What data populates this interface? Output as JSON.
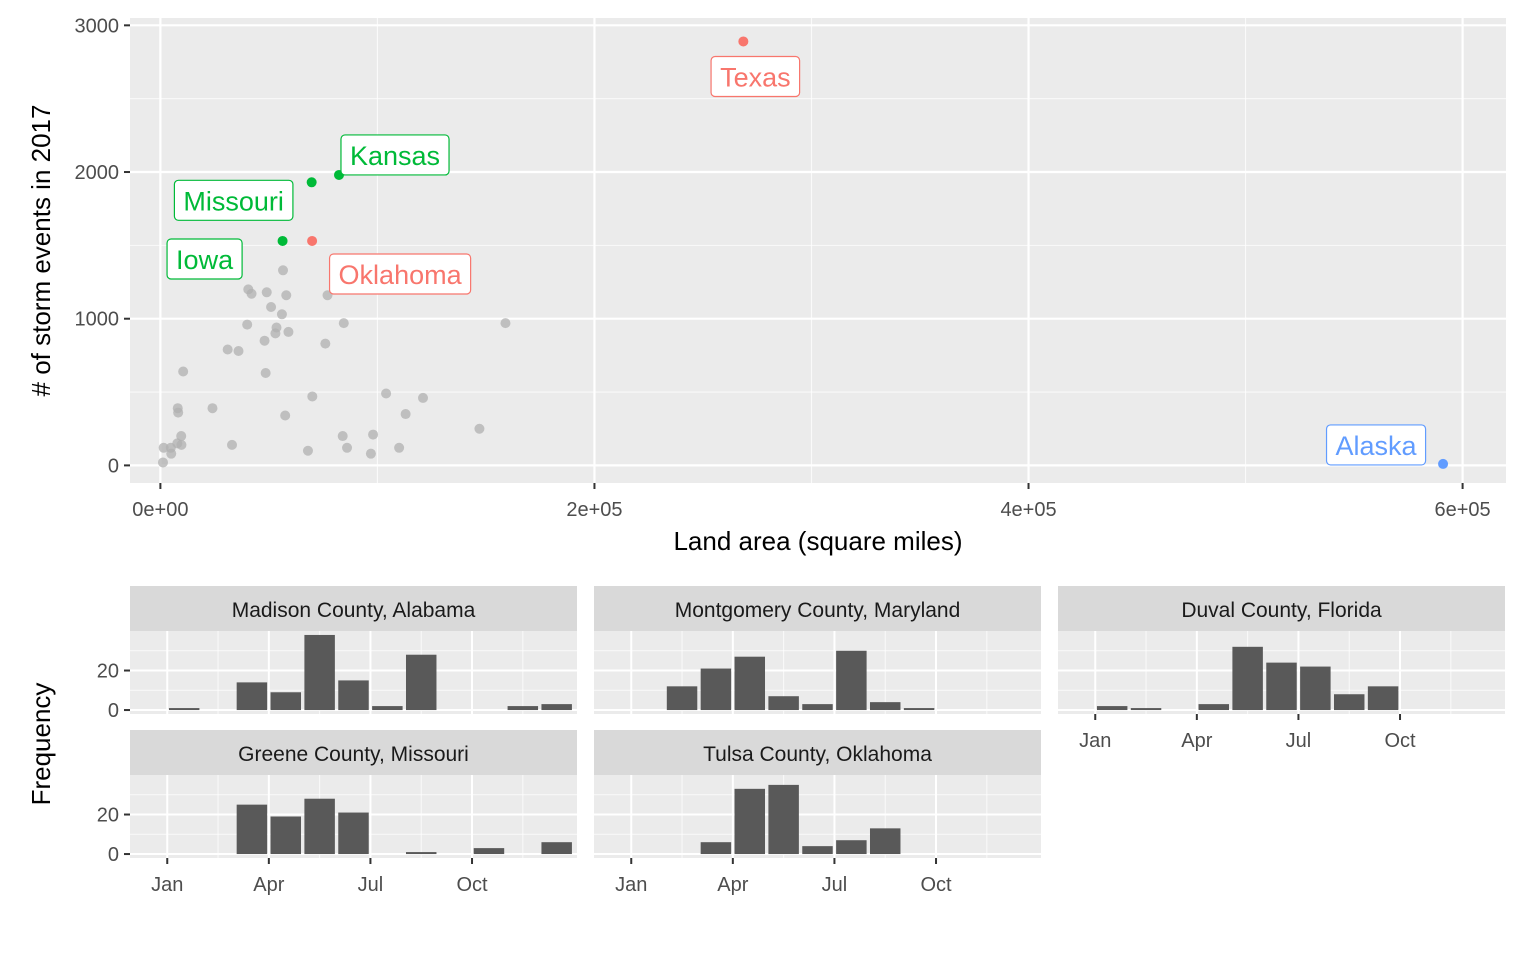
{
  "chart_data": [
    {
      "type": "scatter",
      "xlabel": "Land area (square miles)",
      "ylabel": "# of storm events in 2017",
      "xlim": [
        -14000,
        620000
      ],
      "ylim": [
        -120,
        3050
      ],
      "x_ticks": [
        0,
        200000,
        400000,
        600000
      ],
      "x_tick_labels": [
        "0e+00",
        "2e+05",
        "4e+05",
        "6e+05"
      ],
      "y_ticks": [
        0,
        1000,
        2000,
        3000
      ],
      "y_tick_labels": [
        "0",
        "1000",
        "2000",
        "3000"
      ],
      "grid": true,
      "colors": {
        "red": "#f8766d",
        "green": "#00ba38",
        "blue": "#619cff",
        "gray": "#b0b0b0",
        "panel": "#ebebeb"
      },
      "labeled_points": [
        {
          "name": "Texas",
          "x": 268600,
          "y": 2890,
          "color": "red",
          "label_pos": "below"
        },
        {
          "name": "Kansas",
          "x": 82300,
          "y": 1980,
          "color": "green",
          "label_pos": "upper-right"
        },
        {
          "name": "Missouri",
          "x": 69700,
          "y": 1930,
          "color": "green",
          "label_pos": "left"
        },
        {
          "name": "Iowa",
          "x": 56300,
          "y": 1530,
          "color": "green",
          "label_pos": "left"
        },
        {
          "name": "Oklahoma",
          "x": 69900,
          "y": 1530,
          "color": "red",
          "label_pos": "lower-right"
        },
        {
          "name": "Alaska",
          "x": 591000,
          "y": 10,
          "color": "blue",
          "label_pos": "upper-left"
        }
      ],
      "other_points": [
        [
          1200,
          20
        ],
        [
          1500,
          120
        ],
        [
          4800,
          120
        ],
        [
          5000,
          80
        ],
        [
          7800,
          150
        ],
        [
          8000,
          390
        ],
        [
          8200,
          360
        ],
        [
          9600,
          200
        ],
        [
          9700,
          140
        ],
        [
          10500,
          640
        ],
        [
          24000,
          390
        ],
        [
          31000,
          790
        ],
        [
          33000,
          140
        ],
        [
          36000,
          780
        ],
        [
          40000,
          960
        ],
        [
          40500,
          1200
        ],
        [
          42000,
          1170
        ],
        [
          48000,
          850
        ],
        [
          48500,
          630
        ],
        [
          49000,
          1180
        ],
        [
          51000,
          1080
        ],
        [
          53000,
          900
        ],
        [
          53500,
          940
        ],
        [
          56000,
          1030
        ],
        [
          56500,
          1330
        ],
        [
          57500,
          340
        ],
        [
          58000,
          1160
        ],
        [
          59000,
          910
        ],
        [
          68000,
          100
        ],
        [
          70000,
          470
        ],
        [
          76000,
          830
        ],
        [
          77000,
          1160
        ],
        [
          84000,
          200
        ],
        [
          84500,
          970
        ],
        [
          86000,
          120
        ],
        [
          97000,
          80
        ],
        [
          98000,
          210
        ],
        [
          104000,
          490
        ],
        [
          110000,
          120
        ],
        [
          113000,
          350
        ],
        [
          121000,
          460
        ],
        [
          147000,
          250
        ],
        [
          159000,
          970
        ]
      ]
    },
    {
      "type": "bar",
      "title": "Madison County, Alabama",
      "categories": [
        1,
        2,
        3,
        4,
        5,
        6,
        7,
        8,
        9,
        10,
        11,
        12
      ],
      "values": [
        1,
        0,
        14,
        9,
        38,
        15,
        2,
        28,
        0,
        0,
        2,
        3
      ],
      "ylabel": "Frequency",
      "ylim": [
        -2,
        40
      ],
      "x_ticks": [
        "Jan",
        "Apr",
        "Jul",
        "Oct"
      ]
    },
    {
      "type": "bar",
      "title": "Montgomery County, Maryland",
      "categories": [
        1,
        2,
        3,
        4,
        5,
        6,
        7,
        8,
        9,
        10,
        11,
        12
      ],
      "values": [
        0,
        12,
        21,
        27,
        7,
        3,
        30,
        4,
        1,
        0,
        0,
        0
      ],
      "ylim": [
        -2,
        40
      ],
      "x_ticks": [
        "Jan",
        "Apr",
        "Jul",
        "Oct"
      ]
    },
    {
      "type": "bar",
      "title": "Duval County, Florida",
      "categories": [
        1,
        2,
        3,
        4,
        5,
        6,
        7,
        8,
        9,
        10,
        11,
        12
      ],
      "values": [
        2,
        1,
        0,
        3,
        32,
        24,
        22,
        8,
        12,
        0,
        0,
        0
      ],
      "ylim": [
        -2,
        40
      ],
      "x_ticks": [
        "Jan",
        "Apr",
        "Jul",
        "Oct"
      ]
    },
    {
      "type": "bar",
      "title": "Greene County, Missouri",
      "categories": [
        1,
        2,
        3,
        4,
        5,
        6,
        7,
        8,
        9,
        10,
        11,
        12
      ],
      "values": [
        0,
        0,
        25,
        19,
        28,
        21,
        0,
        1,
        0,
        3,
        0,
        6
      ],
      "ylim": [
        -2,
        40
      ],
      "x_ticks": [
        "Jan",
        "Apr",
        "Jul",
        "Oct"
      ]
    },
    {
      "type": "bar",
      "title": "Tulsa County, Oklahoma",
      "categories": [
        1,
        2,
        3,
        4,
        5,
        6,
        7,
        8,
        9,
        10,
        11,
        12
      ],
      "values": [
        0,
        0,
        6,
        33,
        35,
        4,
        7,
        13,
        0,
        0,
        0,
        0
      ],
      "ylim": [
        -2,
        40
      ],
      "x_ticks": [
        "Jan",
        "Apr",
        "Jul",
        "Oct"
      ]
    }
  ]
}
